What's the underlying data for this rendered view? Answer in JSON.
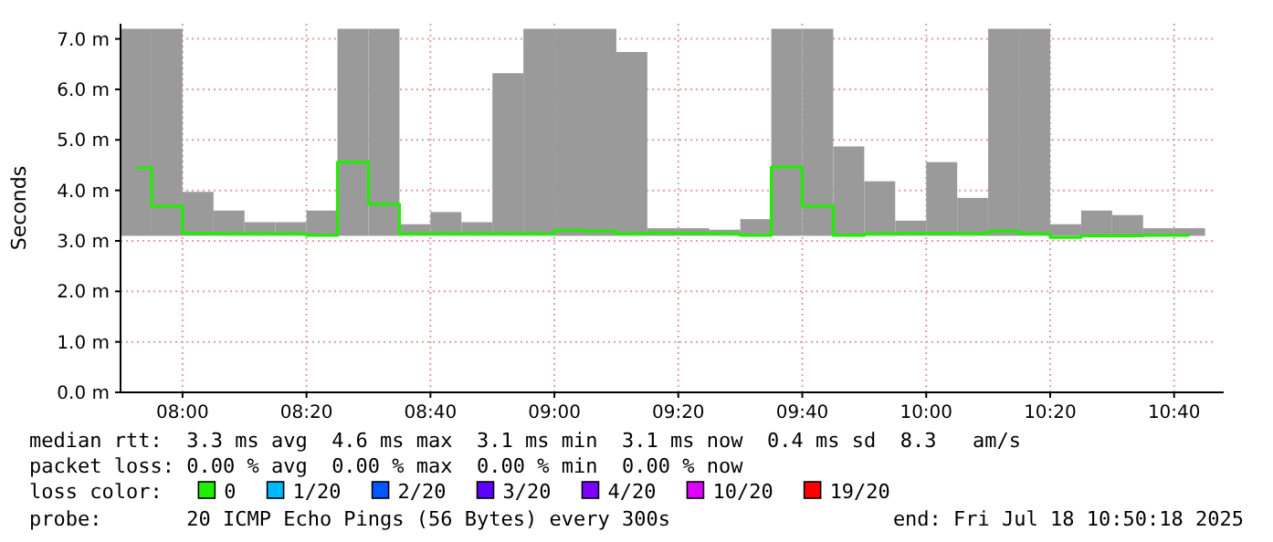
{
  "chart_data": {
    "type": "bar",
    "ylabel": "Seconds",
    "x": [
      7.875,
      7.9583,
      8.0417,
      8.125,
      8.2083,
      8.2917,
      8.375,
      8.4583,
      8.5417,
      8.625,
      8.7083,
      8.7917,
      8.875,
      8.9583,
      9.0417,
      9.125,
      9.2083,
      9.2917,
      9.375,
      9.4583,
      9.5417,
      9.625,
      9.7083,
      9.7917,
      9.875,
      9.9583,
      10.0417,
      10.125,
      10.2083,
      10.2917,
      10.375,
      10.4583,
      10.5417,
      10.625,
      10.7083
    ],
    "xlim": [
      7.8333,
      10.8
    ],
    "xticks": [
      {
        "value": 8,
        "label": "08:00"
      },
      {
        "value": 8.3333,
        "label": "08:20"
      },
      {
        "value": 8.6667,
        "label": "08:40"
      },
      {
        "value": 9,
        "label": "09:00"
      },
      {
        "value": 9.3333,
        "label": "09:20"
      },
      {
        "value": 9.6667,
        "label": "09:40"
      },
      {
        "value": 10,
        "label": "10:00"
      },
      {
        "value": 10.3333,
        "label": "10:20"
      },
      {
        "value": 10.6667,
        "label": "10:40"
      }
    ],
    "ylim": [
      0,
      7.3
    ],
    "yticks": [
      {
        "value": 0,
        "label": "0.0 m"
      },
      {
        "value": 1,
        "label": "1.0 m"
      },
      {
        "value": 2,
        "label": "2.0 m"
      },
      {
        "value": 3,
        "label": "3.0 m"
      },
      {
        "value": 4,
        "label": "4.0 m"
      },
      {
        "value": 5,
        "label": "5.0 m"
      },
      {
        "value": 6,
        "label": "6.0 m"
      },
      {
        "value": 7,
        "label": "7.0 m"
      }
    ],
    "grid": true,
    "legend": "bottom",
    "legend_title": "loss color:",
    "series": [
      {
        "color": "#9a9a9a",
        "base": [
          3.1,
          3.1,
          3.1,
          3.1,
          3.1,
          3.1,
          3.1,
          3.1,
          3.1,
          3.1,
          3.1,
          3.1,
          3.1,
          3.1,
          3.1,
          3.1,
          3.1,
          3.1,
          3.1,
          3.1,
          3.1,
          3.1,
          3.1,
          3.1,
          3.1,
          3.1,
          3.1,
          3.1,
          3.1,
          3.1,
          3.1,
          3.1,
          3.1,
          3.1,
          3.1
        ],
        "values": [
          4.1,
          4.1,
          0.87,
          0.5,
          0.27,
          0.27,
          0.5,
          4.1,
          4.1,
          0.23,
          0.47,
          0.27,
          3.22,
          4.1,
          4.1,
          4.1,
          3.64,
          0.15,
          0.15,
          0.12,
          0.33,
          4.1,
          4.1,
          1.77,
          1.08,
          0.3,
          1.46,
          0.75,
          4.1,
          4.1,
          0.23,
          0.5,
          0.41,
          0.15,
          0.15
        ]
      },
      {
        "type": "step",
        "name": "0",
        "color": "#20ee00",
        "values": [
          4.45,
          3.69,
          3.15,
          3.14,
          3.14,
          3.14,
          3.11,
          4.56,
          3.73,
          3.14,
          3.14,
          3.14,
          3.14,
          3.14,
          3.21,
          3.19,
          3.14,
          3.16,
          3.15,
          3.14,
          3.11,
          4.46,
          3.69,
          3.11,
          3.14,
          3.15,
          3.15,
          3.14,
          3.19,
          3.14,
          3.07,
          3.1,
          3.1,
          3.11,
          3.11
        ]
      },
      {
        "type": "line",
        "name": "1/20",
        "color": "#00b8ff",
        "values": [
          null,
          null,
          null,
          null,
          null,
          null,
          null,
          null,
          null,
          null,
          null,
          null,
          null,
          null,
          null,
          null,
          null,
          null,
          null,
          null,
          null,
          null,
          null,
          null,
          null,
          null,
          null,
          null,
          null,
          null,
          null,
          null,
          null,
          null,
          null
        ]
      },
      {
        "type": "line",
        "name": "2/20",
        "color": "#0059ff",
        "values": [
          null,
          null,
          null,
          null,
          null,
          null,
          null,
          null,
          null,
          null,
          null,
          null,
          null,
          null,
          null,
          null,
          null,
          null,
          null,
          null,
          null,
          null,
          null,
          null,
          null,
          null,
          null,
          null,
          null,
          null,
          null,
          null,
          null,
          null,
          null
        ]
      },
      {
        "type": "line",
        "name": "3/20",
        "color": "#5e00ff",
        "values": [
          null,
          null,
          null,
          null,
          null,
          null,
          null,
          null,
          null,
          null,
          null,
          null,
          null,
          null,
          null,
          null,
          null,
          null,
          null,
          null,
          null,
          null,
          null,
          null,
          null,
          null,
          null,
          null,
          null,
          null,
          null,
          null,
          null,
          null,
          null
        ]
      },
      {
        "type": "line",
        "name": "4/20",
        "color": "#7e00ff",
        "values": [
          null,
          null,
          null,
          null,
          null,
          null,
          null,
          null,
          null,
          null,
          null,
          null,
          null,
          null,
          null,
          null,
          null,
          null,
          null,
          null,
          null,
          null,
          null,
          null,
          null,
          null,
          null,
          null,
          null,
          null,
          null,
          null,
          null,
          null,
          null
        ]
      },
      {
        "type": "line",
        "name": "10/20",
        "color": "#dd00ff",
        "values": [
          null,
          null,
          null,
          null,
          null,
          null,
          null,
          null,
          null,
          null,
          null,
          null,
          null,
          null,
          null,
          null,
          null,
          null,
          null,
          null,
          null,
          null,
          null,
          null,
          null,
          null,
          null,
          null,
          null,
          null,
          null,
          null,
          null,
          null,
          null
        ]
      },
      {
        "type": "line",
        "name": "19/20",
        "color": "#ff0000",
        "values": [
          null,
          null,
          null,
          null,
          null,
          null,
          null,
          null,
          null,
          null,
          null,
          null,
          null,
          null,
          null,
          null,
          null,
          null,
          null,
          null,
          null,
          null,
          null,
          null,
          null,
          null,
          null,
          null,
          null,
          null,
          null,
          null,
          null,
          null,
          null
        ]
      }
    ],
    "annotations": [
      "median rtt:  3.3 ms avg  4.6 ms max  3.1 ms min  3.1 ms now  0.4 ms sd  8.3   am/s",
      "packet loss: 0.00 % avg  0.00 % max  0.00 % min  0.00 % now",
      "probe:       20 ICMP Echo Pings (56 Bytes) every 300s",
      "end: Fri Jul 18 10:50:18 2025"
    ]
  }
}
